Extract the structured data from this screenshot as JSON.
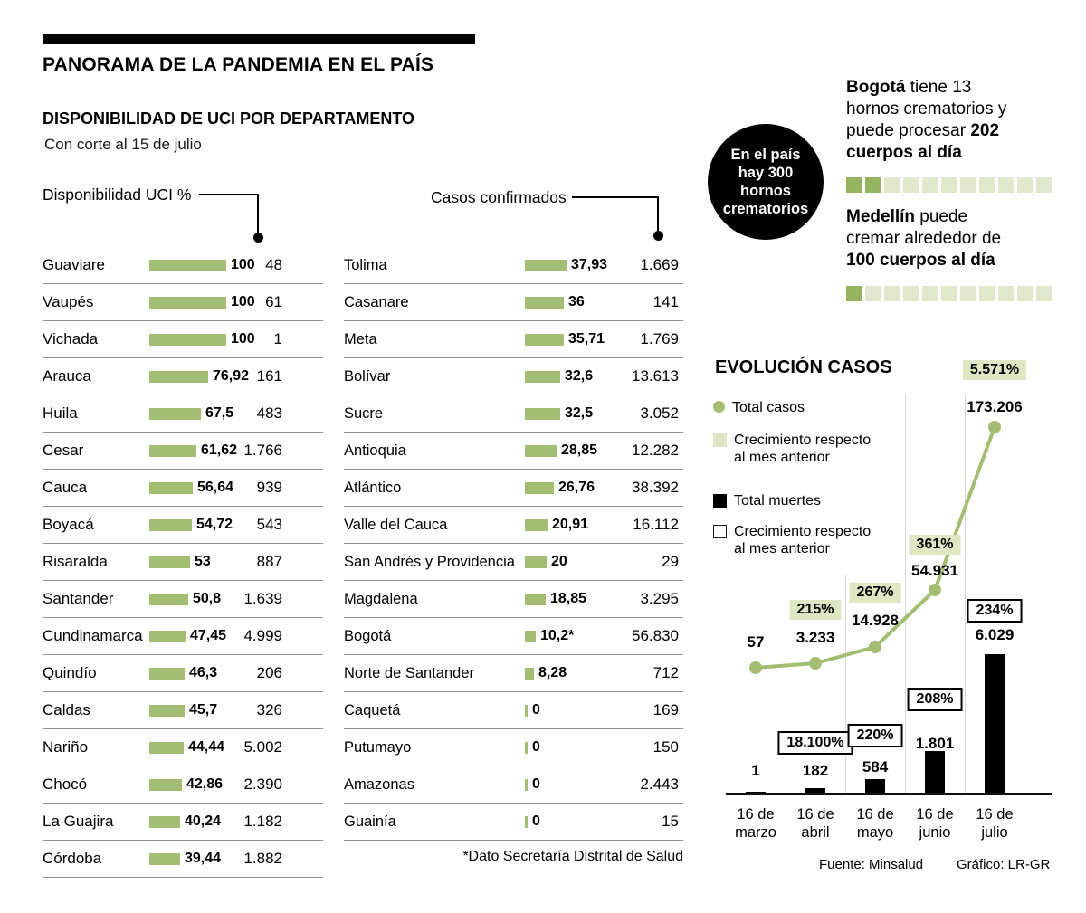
{
  "header": {
    "title": "PANORAMA DE LA PANDEMIA EN EL PAÍS",
    "section_title": "DISPONIBILIDAD DE UCI POR DEPARTAMENTO",
    "subtitle": "Con corte al 15 de julio"
  },
  "uci_table": {
    "left_header": "Disponibilidad UCI %",
    "right_header": "Casos confirmados",
    "footnote": "*Dato Secretaría Distrital de Salud",
    "bar_color": "#a3bd72",
    "left_rows": [
      {
        "name": "Guaviare",
        "value": 100,
        "value_label": "100",
        "cases": "48"
      },
      {
        "name": "Vaupés",
        "value": 100,
        "value_label": "100",
        "cases": "61"
      },
      {
        "name": "Vichada",
        "value": 100,
        "value_label": "100",
        "cases": "1"
      },
      {
        "name": "Arauca",
        "value": 76.92,
        "value_label": "76,92",
        "cases": "161"
      },
      {
        "name": "Huila",
        "value": 67.5,
        "value_label": "67,5",
        "cases": "483"
      },
      {
        "name": "Cesar",
        "value": 61.62,
        "value_label": "61,62",
        "cases": "1.766"
      },
      {
        "name": "Cauca",
        "value": 56.64,
        "value_label": "56,64",
        "cases": "939"
      },
      {
        "name": "Boyacá",
        "value": 54.72,
        "value_label": "54,72",
        "cases": "543"
      },
      {
        "name": "Risaralda",
        "value": 53,
        "value_label": "53",
        "cases": "887"
      },
      {
        "name": "Santander",
        "value": 50.8,
        "value_label": "50,8",
        "cases": "1.639"
      },
      {
        "name": "Cundinamarca",
        "value": 47.45,
        "value_label": "47,45",
        "cases": "4.999"
      },
      {
        "name": "Quindío",
        "value": 46.3,
        "value_label": "46,3",
        "cases": "206"
      },
      {
        "name": "Caldas",
        "value": 45.7,
        "value_label": "45,7",
        "cases": "326"
      },
      {
        "name": "Nariño",
        "value": 44.44,
        "value_label": "44,44",
        "cases": "5.002"
      },
      {
        "name": "Chocó",
        "value": 42.86,
        "value_label": "42,86",
        "cases": "2.390"
      },
      {
        "name": "La Guajira",
        "value": 40.24,
        "value_label": "40,24",
        "cases": "1.182"
      },
      {
        "name": "Córdoba",
        "value": 39.44,
        "value_label": "39,44",
        "cases": "1.882"
      }
    ],
    "right_rows": [
      {
        "name": "Tolima",
        "value": 37.93,
        "value_label": "37,93",
        "cases": "1.669"
      },
      {
        "name": "Casanare",
        "value": 36,
        "value_label": "36",
        "cases": "141"
      },
      {
        "name": "Meta",
        "value": 35.71,
        "value_label": "35,71",
        "cases": "1.769"
      },
      {
        "name": "Bolívar",
        "value": 32.6,
        "value_label": "32,6",
        "cases": "13.613"
      },
      {
        "name": "Sucre",
        "value": 32.5,
        "value_label": "32,5",
        "cases": "3.052"
      },
      {
        "name": "Antioquia",
        "value": 28.85,
        "value_label": "28,85",
        "cases": "12.282"
      },
      {
        "name": "Atlántico",
        "value": 26.76,
        "value_label": "26,76",
        "cases": "38.392"
      },
      {
        "name": "Valle del Cauca",
        "value": 20.91,
        "value_label": "20,91",
        "cases": "16.112"
      },
      {
        "name": "San Andrés y Providencia",
        "value": 20,
        "value_label": "20",
        "cases": "29"
      },
      {
        "name": "Magdalena",
        "value": 18.85,
        "value_label": "18,85",
        "cases": "3.295"
      },
      {
        "name": "Bogotá",
        "value": 10.2,
        "value_label": "10,2*",
        "cases": "56.830"
      },
      {
        "name": "Norte de Santander",
        "value": 8.28,
        "value_label": "8,28",
        "cases": "712"
      },
      {
        "name": "Caquetá",
        "value": 0,
        "value_label": "0",
        "cases": "169"
      },
      {
        "name": "Putumayo",
        "value": 0,
        "value_label": "0",
        "cases": "150"
      },
      {
        "name": "Amazonas",
        "value": 0,
        "value_label": "0",
        "cases": "2.443"
      },
      {
        "name": "Guainía",
        "value": 0,
        "value_label": "0",
        "cases": "15"
      }
    ]
  },
  "crematorios": {
    "circle_text": "En el país hay 300 hornos crematorios",
    "filled_color": "#94b45f",
    "empty_color": "#e1e8cb",
    "bogota": {
      "seg_bold1": "Bogotá",
      "seg_plain": " tiene 13 hornos crematorios y puede procesar ",
      "seg_bold2": "202 cuerpos al día",
      "squares_total": 11,
      "squares_filled": 2
    },
    "medellin": {
      "seg_bold1": "Medellín",
      "seg_plain": " puede cremar alrededor de ",
      "seg_bold2": "100 cuerpos al día",
      "squares_total": 11,
      "squares_filled": 1
    }
  },
  "chart_data": {
    "type": "line+bar",
    "title": "EVOLUCIÓN CASOS",
    "categories": [
      "16 de marzo",
      "16 de abril",
      "16 de mayo",
      "16 de junio",
      "16 de julio"
    ],
    "series": [
      {
        "name": "Total casos",
        "values": [
          57,
          3233,
          14928,
          54931,
          173206
        ],
        "labels": [
          "57",
          "3.233",
          "14.928",
          "54.931",
          "173.206"
        ]
      },
      {
        "name": "Crecimiento casos respecto al mes anterior",
        "values": [
          null,
          215,
          267,
          361,
          5571
        ],
        "labels": [
          "",
          "215%",
          "267%",
          "361%",
          "5.571%"
        ]
      },
      {
        "name": "Total muertes",
        "values": [
          1,
          182,
          584,
          1801,
          6029
        ],
        "labels": [
          "1",
          "182",
          "584",
          "1.801",
          "6.029"
        ]
      },
      {
        "name": "Crecimiento muertes respecto al mes anterior",
        "values": [
          null,
          18100,
          220,
          208,
          234
        ],
        "labels": [
          "",
          "18.100%",
          "220%",
          "208%",
          "234%"
        ]
      }
    ],
    "legend": [
      {
        "label": "Total casos",
        "swatch": "green-dot"
      },
      {
        "label": "Crecimiento respecto al mes anterior",
        "swatch": "light-green-square"
      },
      {
        "label": "Total muertes",
        "swatch": "black-square"
      },
      {
        "label": "Crecimiento respecto al mes anterior",
        "swatch": "white-outline-square"
      }
    ],
    "colors": {
      "cases_line": "#a3bd72",
      "growth_box": "#dfe6c3",
      "deaths_bar": "#000000"
    },
    "source": "Fuente: Minsalud",
    "credit": "Gráfico: LR-GR"
  }
}
